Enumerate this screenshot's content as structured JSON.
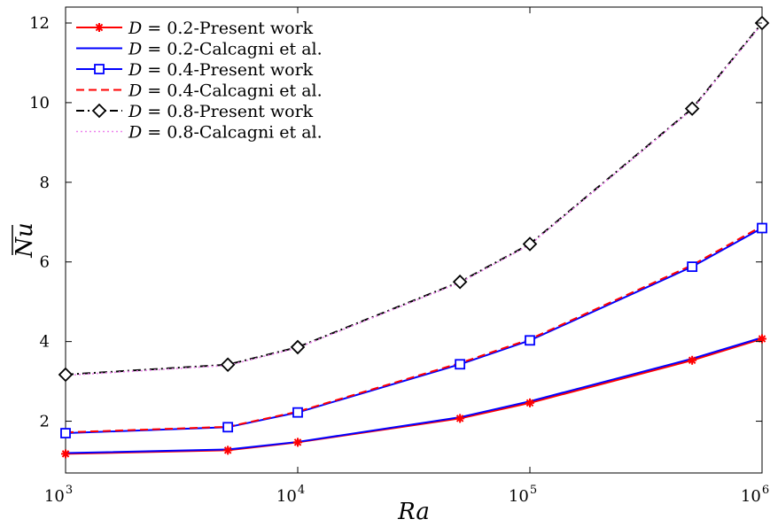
{
  "chart_data": {
    "type": "line",
    "x_scale": "log",
    "xlabel": "Ra",
    "ylabel": "Nu",
    "ylabel_overline": true,
    "xlim": [
      1000,
      1000000
    ],
    "ylim": [
      0.7,
      12.4
    ],
    "x_ticks": [
      {
        "value": 1000,
        "base": "10",
        "exp": "3"
      },
      {
        "value": 10000,
        "base": "10",
        "exp": "4"
      },
      {
        "value": 100000,
        "base": "10",
        "exp": "5"
      },
      {
        "value": 1000000,
        "base": "10",
        "exp": "6"
      }
    ],
    "y_ticks": [
      2,
      4,
      6,
      8,
      10,
      12
    ],
    "grid": false,
    "legend_position": "top-left",
    "x": [
      1000,
      5000,
      10000,
      50000,
      100000,
      500000,
      1000000
    ],
    "series": [
      {
        "name": "D = 0.2-Present work",
        "color": "#ff0000",
        "dash": "solid",
        "marker": "asterisk",
        "values": [
          1.18,
          1.27,
          1.47,
          2.07,
          2.46,
          3.53,
          4.07
        ]
      },
      {
        "name": "D = 0.2-Calcagni et al.",
        "color": "#0000ff",
        "dash": "solid",
        "marker": "none",
        "values": [
          1.2,
          1.29,
          1.48,
          2.1,
          2.5,
          3.57,
          4.1
        ]
      },
      {
        "name": "D = 0.4-Present work",
        "color": "#0000ff",
        "dash": "solid",
        "marker": "square",
        "values": [
          1.7,
          1.85,
          2.22,
          3.43,
          4.03,
          5.88,
          6.85
        ]
      },
      {
        "name": "D = 0.4-Calcagni et al.",
        "color": "#ff0000",
        "dash": "dashed",
        "marker": "none",
        "values": [
          1.72,
          1.86,
          2.24,
          3.46,
          4.06,
          5.92,
          6.9
        ]
      },
      {
        "name": "D = 0.8-Present work",
        "color": "#000000",
        "dash": "dashdot",
        "marker": "diamond",
        "values": [
          3.17,
          3.42,
          3.86,
          5.5,
          6.45,
          9.85,
          12.0
        ]
      },
      {
        "name": "D = 0.8-Calcagni et al.",
        "color": "#ee82ee",
        "dash": "dotted",
        "marker": "none",
        "values": [
          3.15,
          3.4,
          3.84,
          5.48,
          6.43,
          9.83,
          11.98
        ]
      }
    ],
    "legend_entries": [
      {
        "prefix": "D",
        "eq": " = 0.2-Present work"
      },
      {
        "prefix": "D",
        "eq": " = 0.2-Calcagni et al."
      },
      {
        "prefix": "D",
        "eq": " = 0.4-Present work"
      },
      {
        "prefix": "D",
        "eq": " = 0.4-Calcagni et al."
      },
      {
        "prefix": "D",
        "eq": " = 0.8-Present work"
      },
      {
        "prefix": "D",
        "eq": " = 0.8-Calcagni et al."
      }
    ]
  }
}
